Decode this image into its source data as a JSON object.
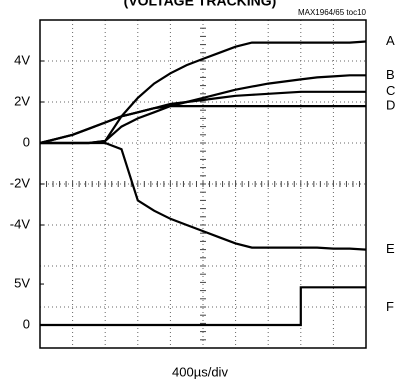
{
  "chart_data": {
    "type": "line",
    "title": "(VOLTAGE TRACKING)",
    "reference": "MAX1964/65 toc10",
    "x_label": "400µs/div",
    "x": [
      0,
      200,
      400,
      600,
      800,
      1000,
      1200,
      1400,
      1600,
      1800,
      2000,
      2200,
      2400,
      2600,
      2800,
      3000,
      3200,
      3400,
      3600,
      3800,
      4000
    ],
    "xlim": [
      0,
      4000
    ],
    "ylim": [
      -10,
      6
    ],
    "yticks": [
      {
        "value": 4,
        "label": "4V"
      },
      {
        "value": 2,
        "label": "2V"
      },
      0,
      {
        "value": -2,
        "label": "-2V"
      },
      {
        "value": -4,
        "label": "-4V"
      }
    ],
    "y2lim": [
      -2.8,
      37.2
    ],
    "y2ticks": [
      {
        "value": 5,
        "label": "5V"
      },
      0
    ],
    "grid": true,
    "series": [
      {
        "name": "A",
        "color": "#000000",
        "values": [
          0,
          0,
          0,
          0,
          0.1,
          1.3,
          2.2,
          2.9,
          3.4,
          3.8,
          4.1,
          4.4,
          4.7,
          4.9,
          4.9,
          4.9,
          4.9,
          4.9,
          4.9,
          4.9,
          4.95
        ]
      },
      {
        "name": "B",
        "color": "#000000",
        "values": [
          0,
          0,
          0,
          0,
          0.1,
          0.8,
          1.2,
          1.5,
          1.8,
          2.0,
          2.2,
          2.4,
          2.6,
          2.75,
          2.9,
          3.0,
          3.1,
          3.2,
          3.25,
          3.3,
          3.3
        ]
      },
      {
        "name": "C",
        "color": "#000000",
        "values": [
          0,
          0.2,
          0.4,
          0.7,
          1.0,
          1.3,
          1.5,
          1.7,
          1.9,
          2.0,
          2.1,
          2.2,
          2.3,
          2.35,
          2.4,
          2.45,
          2.5,
          2.5,
          2.5,
          2.5,
          2.5
        ]
      },
      {
        "name": "D",
        "color": "#000000",
        "values": [
          0,
          0.2,
          0.4,
          0.7,
          1.0,
          1.3,
          1.5,
          1.7,
          1.8,
          1.8,
          1.8,
          1.8,
          1.8,
          1.8,
          1.8,
          1.8,
          1.8,
          1.8,
          1.8,
          1.8,
          1.8
        ]
      },
      {
        "name": "E",
        "color": "#000000",
        "values": [
          0,
          0,
          0,
          0,
          0,
          -0.3,
          -2.8,
          -3.3,
          -3.7,
          -4.0,
          -4.3,
          -4.6,
          -4.9,
          -5.1,
          -5.1,
          -5.1,
          -5.1,
          -5.1,
          -5.15,
          -5.15,
          -5.2
        ]
      },
      {
        "name": "F",
        "color": "#000000",
        "axis": "y2",
        "x": [
          0,
          3200,
          3200,
          4000
        ],
        "values": [
          0,
          0,
          4.6,
          4.6
        ]
      }
    ]
  }
}
